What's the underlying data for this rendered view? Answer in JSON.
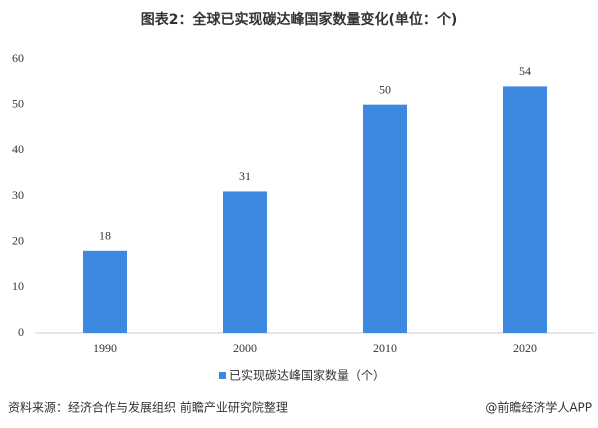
{
  "chart_data": {
    "type": "bar",
    "title": "图表2：全球已实现碳达峰国家数量变化(单位：个)",
    "categories": [
      "1990",
      "2000",
      "2010",
      "2020"
    ],
    "series": [
      {
        "name": "已实现碳达峰国家数量（个）",
        "color": "#3d88e0",
        "values": [
          18,
          31,
          50,
          54
        ]
      }
    ],
    "ylim": [
      0,
      60
    ],
    "yticks": [
      0,
      10,
      20,
      30,
      40,
      50,
      60
    ],
    "grid": false,
    "source": "资料来源：经济合作与发展组织 前瞻产业研究院整理",
    "credit": "@前瞻经济学人APP"
  }
}
